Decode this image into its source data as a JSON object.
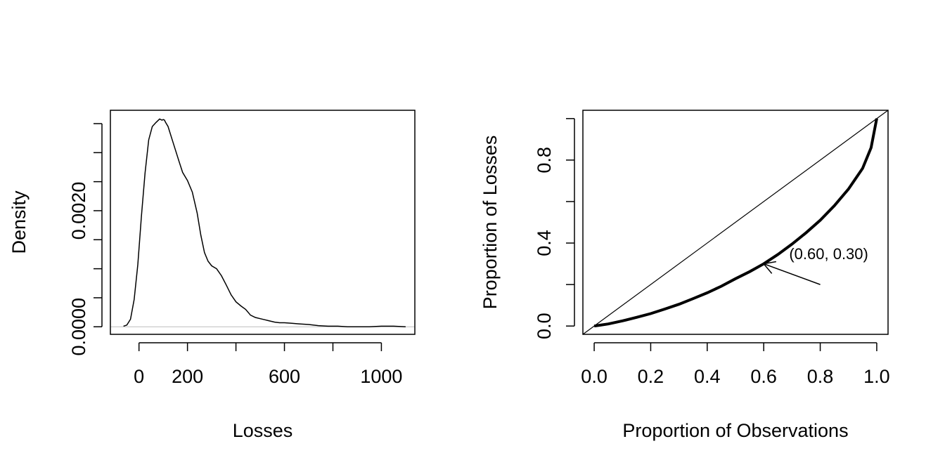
{
  "chart_data": [
    {
      "type": "line",
      "title": "",
      "xlabel": "Losses",
      "ylabel": "Density",
      "x_ticks": [
        0,
        200,
        600,
        1000
      ],
      "x_ticks_all": [
        0,
        200,
        400,
        600,
        800,
        1000
      ],
      "y_ticks": [
        "0.0000",
        "0.0020"
      ],
      "y_ticks_all": [
        0.0,
        0.0005,
        0.001,
        0.0015,
        0.002,
        0.0025,
        0.003,
        0.0035
      ],
      "xlim": [
        -118,
        1138
      ],
      "ylim": [
        -0.00013,
        0.00373
      ],
      "grid": false,
      "baseline": 0,
      "series": [
        {
          "x": [
            -64,
            -50,
            -35,
            -20,
            -5,
            10,
            25,
            40,
            55,
            70,
            85,
            95,
            100,
            105,
            110,
            120,
            135,
            150,
            165,
            180,
            200,
            220,
            240,
            255,
            270,
            285,
            300,
            320,
            340,
            360,
            380,
            400,
            420,
            440,
            460,
            480,
            500,
            520,
            540,
            560,
            580,
            600,
            630,
            660,
            700,
            740,
            780,
            820,
            860,
            900,
            950,
            1000,
            1050,
            1100
          ],
          "y": [
            1e-05,
            3e-05,
            0.00013,
            0.00047,
            0.00107,
            0.0019,
            0.00265,
            0.00322,
            0.00345,
            0.00352,
            0.00358,
            0.00356,
            0.00357,
            0.00356,
            0.00352,
            0.00345,
            0.00325,
            0.00305,
            0.00285,
            0.00266,
            0.00252,
            0.00232,
            0.00196,
            0.00158,
            0.00128,
            0.00113,
            0.00105,
            0.001,
            0.00088,
            0.00072,
            0.00055,
            0.00043,
            0.00036,
            0.0003,
            0.0002,
            0.00016,
            0.00014,
            0.00012,
            0.0001,
            8e-05,
            7e-05,
            7e-05,
            6e-05,
            5e-05,
            4e-05,
            2e-05,
            1e-05,
            1e-05,
            0.0,
            0.0,
            0.0,
            1e-05,
            1e-05,
            0.0
          ]
        }
      ]
    },
    {
      "type": "line",
      "title": "",
      "xlabel": "Proportion of Observations",
      "ylabel": "Proportion of Losses",
      "x_ticks": [
        "0.0",
        "0.2",
        "0.4",
        "0.6",
        "0.8",
        "1.0"
      ],
      "y_ticks": [
        "0.0",
        "0.4",
        "0.8"
      ],
      "y_ticks_all": [
        0.0,
        0.2,
        0.4,
        0.6,
        0.8,
        1.0
      ],
      "xlim": [
        -0.04,
        1.04
      ],
      "ylim": [
        -0.04,
        1.04
      ],
      "grid": false,
      "series": [
        {
          "role": "equality-line",
          "x": [
            -0.04,
            1.04
          ],
          "y": [
            -0.04,
            1.04
          ]
        },
        {
          "role": "lorenz-curve",
          "x": [
            0.0,
            0.02,
            0.05,
            0.1,
            0.15,
            0.2,
            0.25,
            0.3,
            0.35,
            0.4,
            0.45,
            0.5,
            0.55,
            0.6,
            0.65,
            0.7,
            0.75,
            0.8,
            0.85,
            0.9,
            0.95,
            0.98,
            1.0
          ],
          "y": [
            0.0,
            0.004,
            0.01,
            0.025,
            0.042,
            0.06,
            0.082,
            0.105,
            0.132,
            0.16,
            0.192,
            0.228,
            0.262,
            0.3,
            0.345,
            0.395,
            0.45,
            0.51,
            0.58,
            0.66,
            0.76,
            0.86,
            1.0
          ]
        }
      ],
      "annotations": [
        {
          "text": "(0.60, 0.30)",
          "point": [
            0.6,
            0.3
          ],
          "arrow_from": [
            0.8,
            0.2
          ],
          "text_at": [
            0.69,
            0.35
          ]
        }
      ]
    }
  ]
}
